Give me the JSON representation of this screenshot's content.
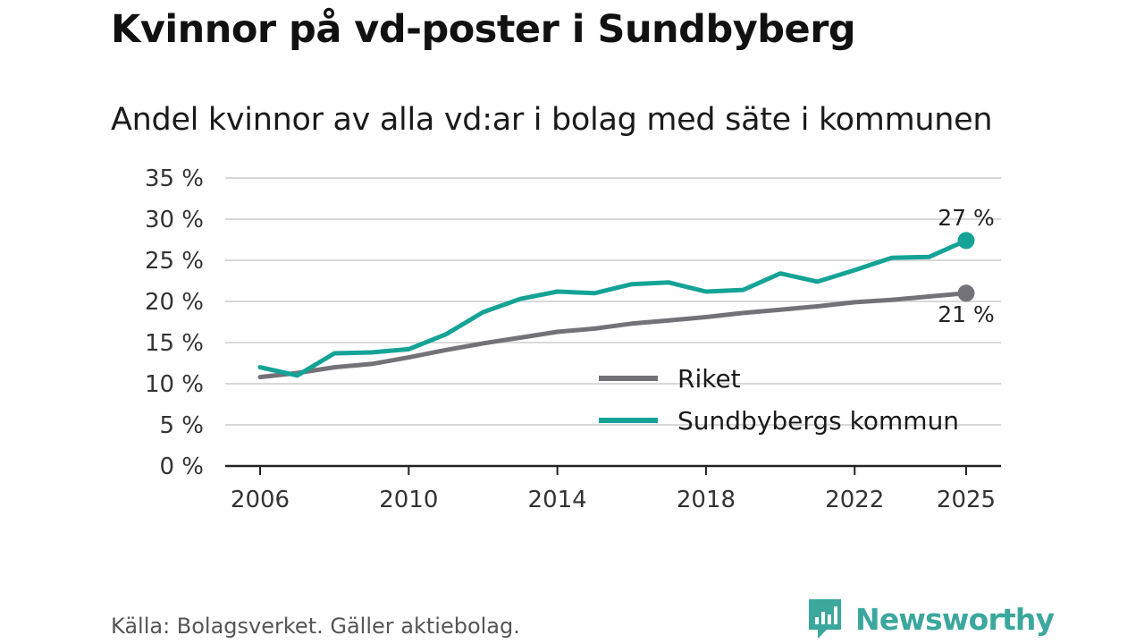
{
  "title": "Kvinnor på vd-poster i Sundbyberg",
  "subtitle": "Andel kvinnor av alla vd:ar i bolag med säte i kommunen",
  "source": "Källa: Bolagsverket. Gäller aktiebolag.",
  "brand": {
    "name": "Newsworthy",
    "icon": "newsworthy-logo-icon",
    "color": "#3ba79d"
  },
  "colors": {
    "riket": "#737278",
    "sundbyberg": "#14a396",
    "grid": "#d9d9d9",
    "axis": "#222222"
  },
  "chart_data": {
    "type": "line",
    "title": "Kvinnor på vd-poster i Sundbyberg",
    "subtitle": "Andel kvinnor av alla vd:ar i bolag med säte i kommunen",
    "xlabel": "",
    "ylabel": "",
    "x": [
      2006,
      2007,
      2008,
      2009,
      2010,
      2011,
      2012,
      2013,
      2014,
      2015,
      2016,
      2017,
      2018,
      2019,
      2020,
      2021,
      2022,
      2023,
      2024,
      2025
    ],
    "x_ticks": [
      "2006",
      "2010",
      "2014",
      "2018",
      "2022",
      "2025"
    ],
    "ylim": [
      0,
      35
    ],
    "y_ticks": [
      "0 %",
      "5 %",
      "10 %",
      "15 %",
      "20 %",
      "25 %",
      "30 %",
      "35 %"
    ],
    "grid": true,
    "legend_position": "bottom-right",
    "series": [
      {
        "name": "Riket",
        "values": [
          10.8,
          11.3,
          12.0,
          12.4,
          13.2,
          14.1,
          14.9,
          15.6,
          16.3,
          16.7,
          17.3,
          17.7,
          18.1,
          18.6,
          19.0,
          19.4,
          19.9,
          20.2,
          20.6,
          21.0
        ],
        "end_label": "21 %"
      },
      {
        "name": "Sundbybergs kommun",
        "values": [
          12.0,
          11.0,
          13.7,
          13.8,
          14.2,
          16.0,
          18.7,
          20.3,
          21.2,
          21.0,
          22.1,
          22.3,
          21.2,
          21.4,
          23.4,
          22.4,
          23.8,
          25.3,
          25.4,
          27.4
        ],
        "end_label": "27 %"
      }
    ]
  }
}
